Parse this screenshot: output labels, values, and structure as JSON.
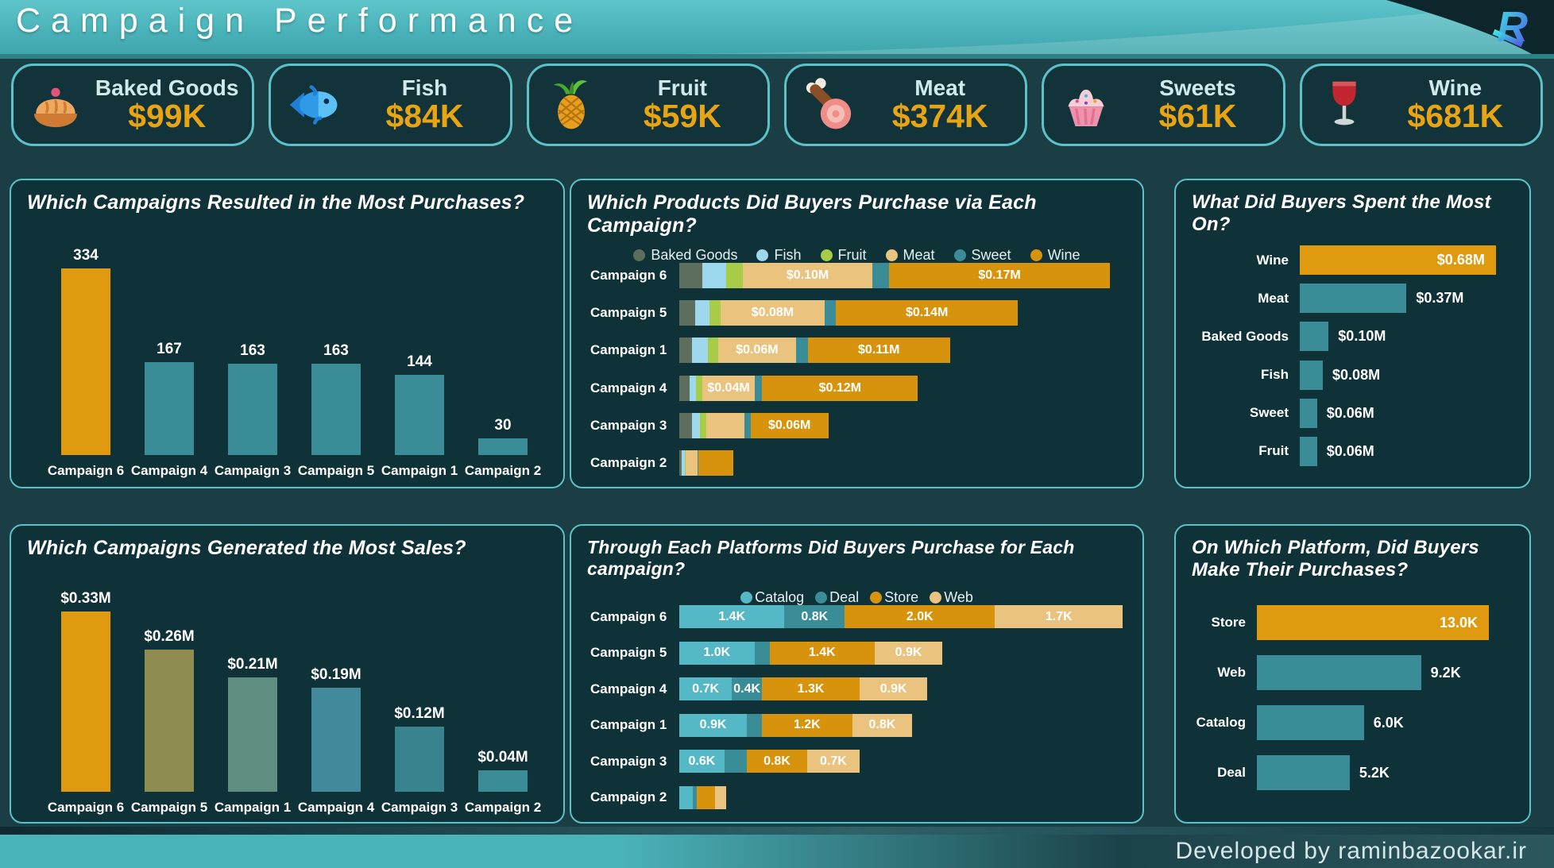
{
  "header": {
    "title": "Campaign Performance",
    "logo_letter": "R"
  },
  "kpis": [
    {
      "icon": "pie-icon",
      "label": "Baked Goods",
      "value": "$99K"
    },
    {
      "icon": "fish-icon",
      "label": "Fish",
      "value": "$84K"
    },
    {
      "icon": "pineapple-icon",
      "label": "Fruit",
      "value": "$59K"
    },
    {
      "icon": "meat-icon",
      "label": "Meat",
      "value": "$374K"
    },
    {
      "icon": "cupcake-icon",
      "label": "Sweets",
      "value": "$61K"
    },
    {
      "icon": "wine-icon",
      "label": "Wine",
      "value": "$681K"
    }
  ],
  "colors": {
    "accent_orange": "#df9a10",
    "teal_bar": "#3a8c97",
    "panel_border": "#5ac2c8",
    "panel_bg": "#0f3238",
    "page_bg": "#1b3e44",
    "header_teal": "#49b2b8",
    "kpi_value": "#e9a412",
    "kpi_label": "#cfe9ec",
    "footer_teal": "#4ab3b8",
    "logo_gradient": [
      "#3ee6e0",
      "#4f5ae8"
    ]
  },
  "chart_data": [
    {
      "id": "purchases-by-campaign",
      "type": "bar",
      "title": "Which Campaigns Resulted in the Most Purchases?",
      "categories": [
        "Campaign 6",
        "Campaign 4",
        "Campaign 3",
        "Campaign 5",
        "Campaign 1",
        "Campaign 2"
      ],
      "values": [
        334,
        167,
        163,
        163,
        144,
        30
      ],
      "labels": [
        "334",
        "167",
        "163",
        "163",
        "144",
        "30"
      ],
      "colors": [
        "#df9a10",
        "#3a8c97",
        "#3a8c97",
        "#3a8c97",
        "#3a8c97",
        "#3a8c97"
      ],
      "ylim": [
        0,
        350
      ],
      "grid": false
    },
    {
      "id": "products-by-campaign",
      "type": "stacked-bar-horizontal",
      "title": "Which Products Did Buyers Purchase via Each Campaign?",
      "unit": "$M",
      "xmax": 0.345,
      "legend": [
        {
          "label": "Baked Goods",
          "color": "#5d6e5e"
        },
        {
          "label": "Fish",
          "color": "#9ed8ec"
        },
        {
          "label": "Fruit",
          "color": "#a8cc48"
        },
        {
          "label": "Meat",
          "color": "#eac37f"
        },
        {
          "label": "Sweet",
          "color": "#3a8c97"
        },
        {
          "label": "Wine",
          "color": "#d8930c"
        }
      ],
      "rows": [
        {
          "category": "Campaign 6",
          "segments": [
            {
              "name": "Baked Goods",
              "value": 0.018,
              "label": ""
            },
            {
              "name": "Fish",
              "value": 0.018,
              "label": ""
            },
            {
              "name": "Fruit",
              "value": 0.013,
              "label": ""
            },
            {
              "name": "Meat",
              "value": 0.1,
              "label": "$0.10M"
            },
            {
              "name": "Sweet",
              "value": 0.013,
              "label": ""
            },
            {
              "name": "Wine",
              "value": 0.17,
              "label": "$0.17M"
            }
          ]
        },
        {
          "category": "Campaign 5",
          "segments": [
            {
              "name": "Baked Goods",
              "value": 0.012,
              "label": ""
            },
            {
              "name": "Fish",
              "value": 0.011,
              "label": ""
            },
            {
              "name": "Fruit",
              "value": 0.009,
              "label": ""
            },
            {
              "name": "Meat",
              "value": 0.08,
              "label": "$0.08M"
            },
            {
              "name": "Sweet",
              "value": 0.009,
              "label": ""
            },
            {
              "name": "Wine",
              "value": 0.14,
              "label": "$0.14M"
            }
          ]
        },
        {
          "category": "Campaign 1",
          "segments": [
            {
              "name": "Baked Goods",
              "value": 0.01,
              "label": ""
            },
            {
              "name": "Fish",
              "value": 0.012,
              "label": ""
            },
            {
              "name": "Fruit",
              "value": 0.008,
              "label": ""
            },
            {
              "name": "Meat",
              "value": 0.06,
              "label": "$0.06M"
            },
            {
              "name": "Sweet",
              "value": 0.009,
              "label": ""
            },
            {
              "name": "Wine",
              "value": 0.11,
              "label": "$0.11M"
            }
          ]
        },
        {
          "category": "Campaign 4",
          "segments": [
            {
              "name": "Baked Goods",
              "value": 0.008,
              "label": ""
            },
            {
              "name": "Fish",
              "value": 0.005,
              "label": ""
            },
            {
              "name": "Fruit",
              "value": 0.005,
              "label": ""
            },
            {
              "name": "Meat",
              "value": 0.04,
              "label": "$0.04M"
            },
            {
              "name": "Sweet",
              "value": 0.006,
              "label": ""
            },
            {
              "name": "Wine",
              "value": 0.12,
              "label": "$0.12M"
            }
          ]
        },
        {
          "category": "Campaign 3",
          "segments": [
            {
              "name": "Baked Goods",
              "value": 0.01,
              "label": ""
            },
            {
              "name": "Fish",
              "value": 0.006,
              "label": ""
            },
            {
              "name": "Fruit",
              "value": 0.005,
              "label": ""
            },
            {
              "name": "Meat",
              "value": 0.029,
              "label": ""
            },
            {
              "name": "Sweet",
              "value": 0.005,
              "label": ""
            },
            {
              "name": "Wine",
              "value": 0.06,
              "label": "$0.06M"
            }
          ]
        },
        {
          "category": "Campaign 2",
          "segments": [
            {
              "name": "Baked Goods",
              "value": 0.002,
              "label": ""
            },
            {
              "name": "Fish",
              "value": 0.002,
              "label": ""
            },
            {
              "name": "Fruit",
              "value": 0.001,
              "label": ""
            },
            {
              "name": "Meat",
              "value": 0.009,
              "label": ""
            },
            {
              "name": "Sweet",
              "value": 0.001,
              "label": ""
            },
            {
              "name": "Wine",
              "value": 0.027,
              "label": ""
            }
          ]
        }
      ]
    },
    {
      "id": "spend-by-product",
      "type": "bar-horizontal",
      "title": "What Did Buyers Spent the Most On?",
      "categories": [
        "Wine",
        "Meat",
        "Baked Goods",
        "Fish",
        "Sweet",
        "Fruit"
      ],
      "values": [
        0.68,
        0.37,
        0.1,
        0.08,
        0.06,
        0.06
      ],
      "labels": [
        "$0.68M",
        "$0.37M",
        "$0.10M",
        "$0.08M",
        "$0.06M",
        "$0.06M"
      ],
      "colors": [
        "#df9a10",
        "#3a8c97",
        "#3a8c97",
        "#3a8c97",
        "#3a8c97",
        "#3a8c97"
      ],
      "xmax": 0.73,
      "label_inside_first": true
    },
    {
      "id": "sales-by-campaign",
      "type": "bar",
      "title": "Which Campaigns Generated the Most Sales?",
      "categories": [
        "Campaign 6",
        "Campaign 5",
        "Campaign 1",
        "Campaign 4",
        "Campaign 3",
        "Campaign 2"
      ],
      "values": [
        0.33,
        0.26,
        0.21,
        0.19,
        0.12,
        0.04
      ],
      "labels": [
        "$0.33M",
        "$0.26M",
        "$0.21M",
        "$0.19M",
        "$0.12M",
        "$0.04M"
      ],
      "colors": [
        "#df9a10",
        "#8f8c51",
        "#5f8e81",
        "#42899b",
        "#37848f",
        "#3a8c97"
      ],
      "ylim": [
        0,
        0.345
      ],
      "grid": false
    },
    {
      "id": "platforms-by-campaign",
      "type": "stacked-bar-horizontal",
      "title": "Through Each Platforms Did Buyers Purchase for Each campaign?",
      "unit": "K",
      "xmax": 5.95,
      "legend": [
        {
          "label": "Catalog",
          "color": "#54b8c6"
        },
        {
          "label": "Deal",
          "color": "#3a8c97"
        },
        {
          "label": "Store",
          "color": "#d8930c"
        },
        {
          "label": "Web",
          "color": "#eac37f"
        }
      ],
      "rows": [
        {
          "category": "Campaign 6",
          "segments": [
            {
              "name": "Catalog",
              "value": 1.4,
              "label": "1.4K"
            },
            {
              "name": "Deal",
              "value": 0.8,
              "label": "0.8K"
            },
            {
              "name": "Store",
              "value": 2.0,
              "label": "2.0K"
            },
            {
              "name": "Web",
              "value": 1.7,
              "label": "1.7K"
            }
          ]
        },
        {
          "category": "Campaign 5",
          "segments": [
            {
              "name": "Catalog",
              "value": 1.0,
              "label": "1.0K"
            },
            {
              "name": "Deal",
              "value": 0.2,
              "label": ""
            },
            {
              "name": "Store",
              "value": 1.4,
              "label": "1.4K"
            },
            {
              "name": "Web",
              "value": 0.9,
              "label": "0.9K"
            }
          ]
        },
        {
          "category": "Campaign 4",
          "segments": [
            {
              "name": "Catalog",
              "value": 0.7,
              "label": "0.7K"
            },
            {
              "name": "Deal",
              "value": 0.4,
              "label": "0.4K"
            },
            {
              "name": "Store",
              "value": 1.3,
              "label": "1.3K"
            },
            {
              "name": "Web",
              "value": 0.9,
              "label": "0.9K"
            }
          ]
        },
        {
          "category": "Campaign 1",
          "segments": [
            {
              "name": "Catalog",
              "value": 0.9,
              "label": "0.9K"
            },
            {
              "name": "Deal",
              "value": 0.2,
              "label": ""
            },
            {
              "name": "Store",
              "value": 1.2,
              "label": "1.2K"
            },
            {
              "name": "Web",
              "value": 0.8,
              "label": "0.8K"
            }
          ]
        },
        {
          "category": "Campaign 3",
          "segments": [
            {
              "name": "Catalog",
              "value": 0.6,
              "label": "0.6K"
            },
            {
              "name": "Deal",
              "value": 0.3,
              "label": ""
            },
            {
              "name": "Store",
              "value": 0.8,
              "label": "0.8K"
            },
            {
              "name": "Web",
              "value": 0.7,
              "label": "0.7K"
            }
          ]
        },
        {
          "category": "Campaign 2",
          "segments": [
            {
              "name": "Catalog",
              "value": 0.18,
              "label": ""
            },
            {
              "name": "Deal",
              "value": 0.05,
              "label": ""
            },
            {
              "name": "Store",
              "value": 0.25,
              "label": ""
            },
            {
              "name": "Web",
              "value": 0.14,
              "label": ""
            }
          ]
        }
      ]
    },
    {
      "id": "platform-totals",
      "type": "bar-horizontal",
      "title": "On Which Platform, Did Buyers Make Their Purchases?",
      "categories": [
        "Store",
        "Web",
        "Catalog",
        "Deal"
      ],
      "values": [
        13.0,
        9.2,
        6.0,
        5.2
      ],
      "labels": [
        "13.0K",
        "9.2K",
        "6.0K",
        "5.2K"
      ],
      "colors": [
        "#df9a10",
        "#3a8c97",
        "#3a8c97",
        "#3a8c97"
      ],
      "xmax": 14.2,
      "label_inside_first": true
    }
  ],
  "footer": {
    "credit": "Developed by raminbazookar.ir"
  }
}
